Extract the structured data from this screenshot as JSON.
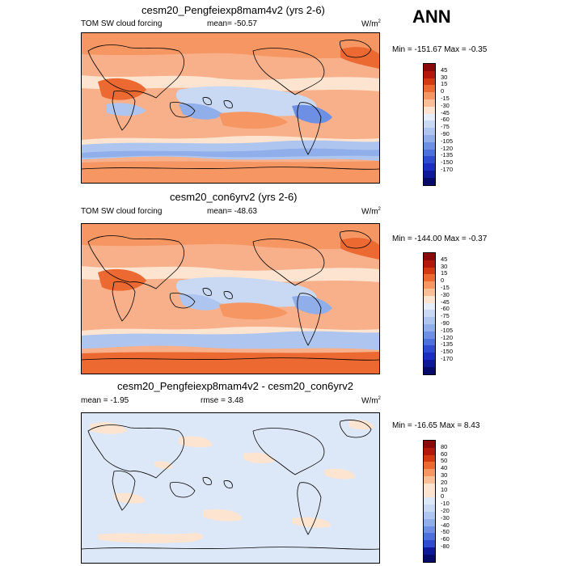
{
  "corner_label": "ANN",
  "panels": [
    {
      "title": "cesm20_Pengfeiexp8mam4v2 (yrs 2-6)",
      "left_text": "TOM SW cloud forcing",
      "mid_text": "mean= -50.57",
      "units": "W/m",
      "units_sup": "2",
      "minmax": "Min = -151.67 Max =  -0.35",
      "colorbar_labels": [
        "45",
        "30",
        "15",
        "0",
        "-15",
        "-30",
        "-45",
        "-60",
        "-75",
        "-90",
        "-105",
        "-120",
        "-135",
        "-150",
        "-170"
      ],
      "colorbar_colors": [
        "#8a0a0a",
        "#b4180c",
        "#d33a12",
        "#ec6a32",
        "#f59663",
        "#fbbf98",
        "#fde4d0",
        "#e6eef9",
        "#c9d9f3",
        "#aec5ef",
        "#8faeea",
        "#6d8fe4",
        "#4c70dc",
        "#2f4bd0",
        "#1c2ec0",
        "#10189a",
        "#080a6a"
      ]
    },
    {
      "title": "cesm20_con6yrv2 (yrs 2-6)",
      "left_text": "TOM SW cloud forcing",
      "mid_text": "mean= -48.63",
      "units": "W/m",
      "units_sup": "2",
      "minmax": "Min = -144.00 Max =  -0.37",
      "colorbar_labels": [
        "45",
        "30",
        "15",
        "0",
        "-15",
        "-30",
        "-45",
        "-60",
        "-75",
        "-90",
        "-105",
        "-120",
        "-135",
        "-150",
        "-170"
      ],
      "colorbar_colors": [
        "#8a0a0a",
        "#b4180c",
        "#d33a12",
        "#ec6a32",
        "#f59663",
        "#fbbf98",
        "#fde4d0",
        "#e6eef9",
        "#c9d9f3",
        "#aec5ef",
        "#8faeea",
        "#6d8fe4",
        "#4c70dc",
        "#2f4bd0",
        "#1c2ec0",
        "#10189a",
        "#080a6a"
      ]
    },
    {
      "title": "cesm20_Pengfeiexp8mam4v2 - cesm20_con6yrv2",
      "left_text": "mean =  -1.95",
      "mid_text": "rmse =   3.48",
      "units": "W/m",
      "units_sup": "2",
      "minmax": "Min = -16.65 Max =   8.43",
      "colorbar_labels": [
        "80",
        "60",
        "50",
        "40",
        "30",
        "20",
        "10",
        "0",
        "-10",
        "-20",
        "-30",
        "-40",
        "-50",
        "-60",
        "-80"
      ],
      "colorbar_colors": [
        "#8a0a0a",
        "#b4180c",
        "#d33a12",
        "#ec6a32",
        "#f59663",
        "#fbbf98",
        "#fde4d0",
        "#fde4d0",
        "#dce8f8",
        "#c9d9f3",
        "#aec5ef",
        "#8faeea",
        "#6d8fe4",
        "#4c70dc",
        "#2f4bd0",
        "#10189a",
        "#080a6a"
      ]
    }
  ]
}
